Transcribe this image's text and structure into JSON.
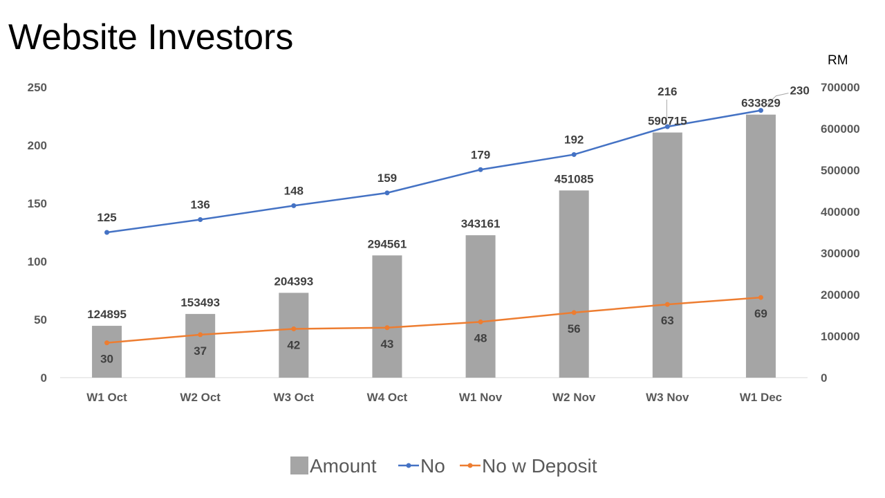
{
  "chart_data": {
    "type": "bar",
    "title": "Website Investors",
    "categories": [
      "W1 Oct",
      "W2 Oct",
      "W3 Oct",
      "W4 Oct",
      "W1 Nov",
      "W2 Nov",
      "W3 Nov",
      "W1 Dec"
    ],
    "series": [
      {
        "name": "Amount",
        "type": "bar",
        "axis": "right",
        "color": "#a5a5a5",
        "values": [
          124895,
          153493,
          204393,
          294561,
          343161,
          451085,
          590715,
          633829
        ]
      },
      {
        "name": "No",
        "type": "line",
        "axis": "left",
        "color": "#4472c4",
        "values": [
          125,
          136,
          148,
          159,
          179,
          192,
          216,
          230
        ]
      },
      {
        "name": "No w Deposit",
        "type": "line",
        "axis": "left",
        "color": "#ed7d31",
        "values": [
          30,
          37,
          42,
          43,
          48,
          56,
          63,
          69
        ]
      }
    ],
    "y_left": {
      "min": 0,
      "max": 250,
      "ticks": [
        0,
        50,
        100,
        150,
        200,
        250
      ]
    },
    "y_right": {
      "min": 0,
      "max": 700000,
      "ticks": [
        0,
        100000,
        200000,
        300000,
        400000,
        500000,
        600000,
        700000
      ],
      "unit_label": "RM"
    },
    "legend": [
      "Amount",
      "No",
      "No w Deposit"
    ],
    "legend_position": "bottom",
    "grid": false
  }
}
